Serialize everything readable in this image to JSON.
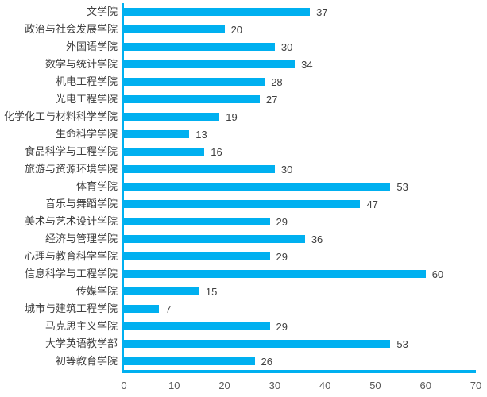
{
  "chart_data": {
    "type": "bar",
    "orientation": "horizontal",
    "title": "",
    "xlabel": "",
    "ylabel": "",
    "categories": [
      "文学院",
      "政治与社会发展学院",
      "外国语学院",
      "数学与统计学院",
      "机电工程学院",
      "光电工程学院",
      "化学化工与材料科学学院",
      "生命科学学院",
      "食品科学与工程学院",
      "旅游与资源环境学院",
      "体育学院",
      "音乐与舞蹈学院",
      "美术与艺术设计学院",
      "经济与管理学院",
      "心理与教育科学学院",
      "信息科学与工程学院",
      "传媒学院",
      "城市与建筑工程学院",
      "马克思主义学院",
      "大学英语教学部",
      "初等教育学院"
    ],
    "values": [
      37,
      20,
      30,
      34,
      28,
      27,
      19,
      13,
      16,
      30,
      53,
      47,
      29,
      36,
      29,
      60,
      15,
      7,
      29,
      53,
      26
    ],
    "data_labels": true,
    "x_ticks": [
      0,
      10,
      20,
      30,
      40,
      50,
      60,
      70
    ],
    "xlim": [
      0,
      70
    ],
    "grid": false,
    "legend": false,
    "bar_color": "#00B0F0",
    "axis_color": "#00B0F0",
    "label_color": "#404040",
    "tick_color": "#595959"
  }
}
